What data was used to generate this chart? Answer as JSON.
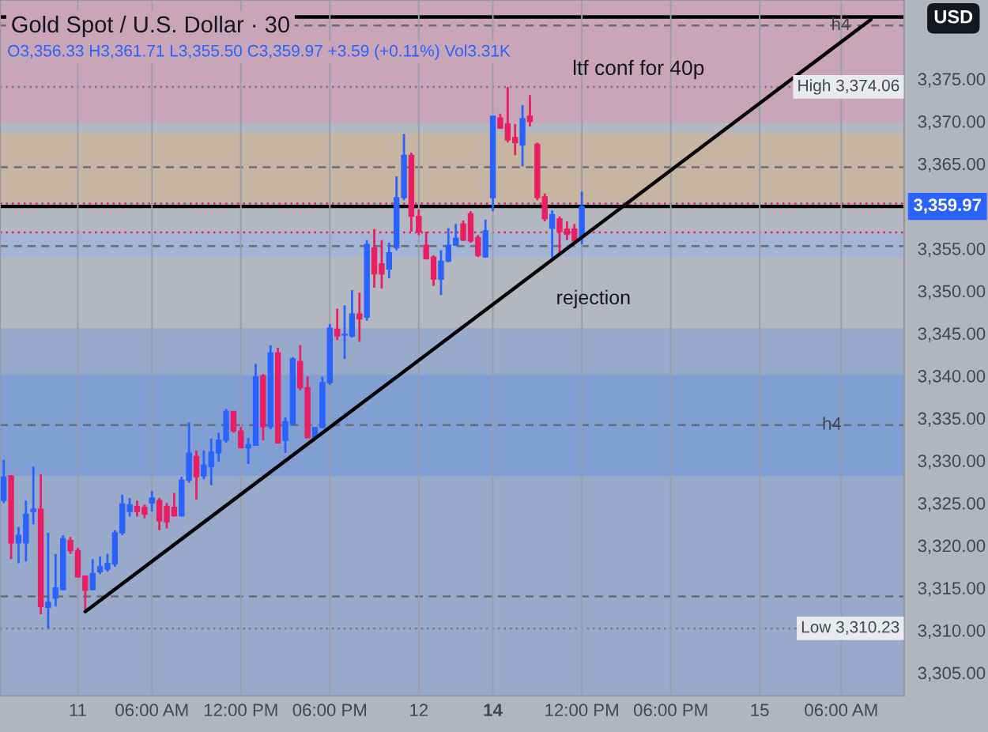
{
  "chart_data": {
    "type": "candlestick",
    "title": "Gold Spot / U.S. Dollar · 30",
    "subtitle": "O3,356.33 H3,361.71 L3,355.50 C3,359.97 +3.59 (+0.11%) Vol3.31K",
    "categories": [
      null,
      null,
      null,
      null,
      null,
      null,
      null,
      null,
      null,
      null,
      "11",
      null,
      null,
      null,
      null,
      null,
      null,
      null,
      null,
      null,
      "06:00 AM",
      null,
      null,
      null,
      null,
      null,
      null,
      null,
      null,
      null,
      null,
      null,
      "12:00 PM",
      null,
      null,
      null,
      null,
      null,
      null,
      null,
      null,
      null,
      null,
      null,
      "06:00 PM",
      null,
      null,
      null,
      null,
      null,
      null,
      null,
      null,
      null,
      null,
      null,
      "12",
      null,
      null,
      null,
      null,
      null,
      null,
      null,
      null,
      null,
      "14",
      null,
      null,
      null,
      null,
      null,
      null,
      null,
      null,
      null,
      null,
      null,
      "12:00 PM",
      null,
      null,
      null,
      null,
      null,
      null,
      null,
      null,
      null,
      null,
      null,
      "06:00 PM",
      null,
      null,
      null,
      null,
      null,
      null,
      null,
      null,
      null,
      null,
      null,
      "15",
      null,
      null,
      null,
      null,
      null,
      null,
      null,
      null,
      null,
      null,
      "06:00 AM",
      null,
      null,
      null,
      null,
      null,
      null,
      null,
      null
    ],
    "ohlc": [
      [
        3325.3,
        3330.1,
        3325.0,
        3328.1
      ],
      [
        3328.2,
        3328.3,
        3318.4,
        3320.3
      ],
      [
        3320.3,
        3322.2,
        3317.9,
        3321.2
      ],
      [
        3320.3,
        3325.3,
        3318.1,
        3323.7
      ],
      [
        3324.0,
        3329.3,
        3322.5,
        3324.3
      ],
      [
        3324.3,
        3328.4,
        3311.9,
        3312.8
      ],
      [
        3312.7,
        3321.5,
        3310.23,
        3313.3
      ],
      [
        3313.8,
        3319.0,
        3312.8,
        3315.0
      ],
      [
        3314.8,
        3321.2,
        3314.7,
        3320.8
      ],
      [
        3320.6,
        3321.0,
        3319.0,
        3319.4
      ],
      [
        3319.4,
        3319.7,
        3316.2,
        3316.3
      ],
      [
        3316.4,
        3316.4,
        3312.2,
        3314.7
      ],
      [
        3314.8,
        3318.4,
        3314.7,
        3316.7
      ],
      [
        3316.9,
        3318.7,
        3316.6,
        3317.5
      ],
      [
        3317.2,
        3319.0,
        3316.9,
        3317.9
      ],
      [
        3317.8,
        3321.8,
        3317.5,
        3321.5
      ],
      [
        3321.5,
        3326.0,
        3321.2,
        3324.9
      ],
      [
        3324.0,
        3325.6,
        3323.4,
        3324.8
      ],
      [
        3324.6,
        3325.3,
        3323.4,
        3324.0
      ],
      [
        3324.5,
        3324.8,
        3323.2,
        3323.7
      ],
      [
        3325.0,
        3326.4,
        3324.0,
        3325.6
      ],
      [
        3325.3,
        3325.6,
        3321.8,
        3322.9
      ],
      [
        3324.6,
        3325.0,
        3322.0,
        3322.8
      ],
      [
        3324.5,
        3326.2,
        3323.4,
        3323.5
      ],
      [
        3323.5,
        3328.1,
        3323.4,
        3327.7
      ],
      [
        3327.7,
        3334.5,
        3327.4,
        3330.9
      ],
      [
        3330.5,
        3331.2,
        3325.4,
        3328.1
      ],
      [
        3328.2,
        3331.2,
        3327.8,
        3329.5
      ],
      [
        3329.3,
        3332.6,
        3327.1,
        3331.0
      ],
      [
        3330.9,
        3333.3,
        3329.9,
        3332.4
      ],
      [
        3332.4,
        3336.1,
        3332.1,
        3335.8
      ],
      [
        3335.8,
        3335.8,
        3333.3,
        3333.5
      ],
      [
        3333.5,
        3334.0,
        3331.5,
        3331.5
      ],
      [
        3331.5,
        3332.7,
        3329.6,
        3331.9
      ],
      [
        3331.8,
        3341.4,
        3331.8,
        3339.9
      ],
      [
        3340.0,
        3340.2,
        3332.4,
        3334.0
      ],
      [
        3334.0,
        3343.6,
        3333.7,
        3342.7
      ],
      [
        3342.7,
        3343.3,
        3332.1,
        3332.1
      ],
      [
        3332.4,
        3335.1,
        3330.9,
        3334.6
      ],
      [
        3334.3,
        3342.2,
        3334.3,
        3342.0
      ],
      [
        3341.7,
        3343.6,
        3338.3,
        3338.6
      ],
      [
        3338.6,
        3339.9,
        3332.7,
        3332.7
      ],
      [
        3332.8,
        3333.9,
        3332.7,
        3333.9
      ],
      [
        3333.9,
        3339.9,
        3333.8,
        3339.2
      ],
      [
        3339.2,
        3346.1,
        3338.9,
        3345.6
      ],
      [
        3345.5,
        3347.9,
        3344.2,
        3344.7
      ],
      [
        3344.8,
        3348.3,
        3342.0,
        3344.9
      ],
      [
        3344.7,
        3350.1,
        3344.5,
        3347.3
      ],
      [
        3347.3,
        3349.8,
        3344.0,
        3346.7
      ],
      [
        3346.9,
        3356.0,
        3346.5,
        3355.5
      ],
      [
        3355.1,
        3357.3,
        3350.4,
        3352.0
      ],
      [
        3353.2,
        3356.0,
        3350.3,
        3352.0
      ],
      [
        3352.6,
        3355.7,
        3351.5,
        3354.5
      ],
      [
        3355.1,
        3363.5,
        3354.8,
        3361.0
      ],
      [
        3361.0,
        3368.5,
        3360.7,
        3366.0
      ],
      [
        3366.0,
        3366.3,
        3357.0,
        3358.8
      ],
      [
        3358.8,
        3359.6,
        3356.6,
        3357.0
      ],
      [
        3355.4,
        3357.0,
        3353.7,
        3353.8
      ],
      [
        3354.0,
        3354.2,
        3350.6,
        3351.4
      ],
      [
        3351.4,
        3354.8,
        3349.5,
        3353.5
      ],
      [
        3353.5,
        3357.4,
        3353.4,
        3355.4
      ],
      [
        3355.4,
        3357.9,
        3355.3,
        3356.2
      ],
      [
        3357.9,
        3358.3,
        3355.9,
        3356.0
      ],
      [
        3359.1,
        3359.4,
        3355.7,
        3355.9
      ],
      [
        3356.3,
        3356.6,
        3354.0,
        3354.2
      ],
      [
        3354.0,
        3358.4,
        3353.9,
        3357.1
      ],
      [
        3361.0,
        3370.6,
        3359.4,
        3370.6
      ],
      [
        3370.4,
        3370.9,
        3369.1,
        3369.2
      ],
      [
        3369.7,
        3374.06,
        3367.5,
        3367.8
      ],
      [
        3368.1,
        3369.7,
        3366.0,
        3367.5
      ],
      [
        3367.2,
        3371.9,
        3364.7,
        3370.3
      ],
      [
        3370.6,
        3373.1,
        3369.4,
        3370.0
      ],
      [
        3367.3,
        3367.5,
        3360.7,
        3361.0
      ],
      [
        3361.1,
        3361.5,
        3358.2,
        3358.5
      ],
      [
        3357.4,
        3359.5,
        3353.9,
        3359.0
      ],
      [
        3358.5,
        3358.8,
        3354.2,
        3357.0
      ],
      [
        3357.3,
        3358.2,
        3356.0,
        3356.7
      ],
      [
        3357.3,
        3357.9,
        3355.7,
        3355.9
      ],
      [
        3356.33,
        3361.71,
        3355.5,
        3359.97
      ],
      null,
      null,
      null,
      null,
      null,
      null,
      null,
      null,
      null,
      null,
      null,
      null,
      null,
      null,
      null,
      null,
      null,
      null,
      null,
      null,
      null,
      null,
      null,
      null,
      null,
      null,
      null,
      null,
      null,
      null,
      null,
      null,
      null,
      null,
      null,
      null,
      null,
      null,
      null,
      null,
      null,
      null,
      null
    ],
    "colors": [
      "#2962ff",
      "#e91e63",
      "#2962ff",
      "#2962ff",
      "#2962ff",
      "#e91e63",
      "#2962ff",
      "#2962ff",
      "#2962ff",
      "#e91e63",
      "#e91e63",
      "#e91e63",
      "#2962ff",
      "#2962ff",
      "#2962ff",
      "#2962ff",
      "#2962ff",
      "#2962ff",
      "#e91e63",
      "#e91e63",
      "#2962ff",
      "#e91e63",
      "#e91e63",
      "#e91e63",
      "#2962ff",
      "#2962ff",
      "#e91e63",
      "#2962ff",
      "#2962ff",
      "#2962ff",
      "#2962ff",
      "#e91e63",
      "#e91e63",
      "#2962ff",
      "#2962ff",
      "#e91e63",
      "#2962ff",
      "#e91e63",
      "#2962ff",
      "#2962ff",
      "#e91e63",
      "#e91e63",
      "#2962ff",
      "#2962ff",
      "#2962ff",
      "#e91e63",
      "#2962ff",
      "#2962ff",
      "#e91e63",
      "#2962ff",
      "#e91e63",
      "#e91e63",
      "#2962ff",
      "#2962ff",
      "#2962ff",
      "#e91e63",
      "#e91e63",
      "#e91e63",
      "#e91e63",
      "#2962ff",
      "#2962ff",
      "#2962ff",
      "#e91e63",
      "#e91e63",
      "#e91e63",
      "#2962ff",
      "#2962ff",
      "#e91e63",
      "#e91e63",
      "#e91e63",
      "#2962ff",
      "#e91e63",
      "#e91e63",
      "#e91e63",
      "#2962ff",
      "#e91e63",
      "#e91e63",
      "#e91e63",
      "#2962ff",
      null,
      null,
      null,
      null,
      null,
      null,
      null,
      null,
      null,
      null,
      null,
      null,
      null,
      null,
      null,
      null,
      null,
      null,
      null,
      null,
      null,
      null,
      null,
      null,
      null,
      null,
      null,
      null,
      null,
      null,
      null,
      null,
      null,
      null,
      null,
      null,
      null,
      null,
      null,
      null,
      null,
      null,
      null
    ],
    "series": [
      {
        "type": "line",
        "values": [
          null,
          null,
          null,
          null,
          null,
          null,
          null,
          null,
          null,
          null,
          null,
          3312.2,
          null,
          null,
          null,
          null,
          null,
          null,
          null,
          null,
          null,
          null,
          null,
          null,
          null,
          null,
          null,
          null,
          null,
          null,
          null,
          null,
          null,
          null,
          null,
          null,
          null,
          null,
          null,
          null,
          null,
          null,
          null,
          null,
          null,
          null,
          null,
          null,
          null,
          null,
          null,
          null,
          null,
          null,
          null,
          null,
          null,
          null,
          null,
          null,
          null,
          null,
          null,
          null,
          null,
          null,
          null,
          null,
          null,
          null,
          null,
          null,
          null,
          null,
          null,
          null,
          null,
          null,
          null,
          null,
          null,
          null,
          null,
          null,
          null,
          null,
          null,
          null,
          null,
          null,
          null,
          null,
          null,
          null,
          null,
          null,
          null,
          null,
          null,
          null,
          null,
          null,
          null,
          null,
          null,
          null,
          null,
          null,
          null,
          null,
          null,
          null,
          null,
          null,
          null,
          null,
          null,
          3382.0,
          null,
          null,
          null,
          null
        ],
        "color": "#000000"
      }
    ],
    "ylim": [
      3302.3,
      3384.3
    ],
    "yticks": [
      {
        "value": 3305,
        "label": "3,305.00"
      },
      {
        "value": 3310,
        "label": "3,310.00"
      },
      {
        "value": 3315,
        "label": "3,315.00"
      },
      {
        "value": 3320,
        "label": "3,320.00"
      },
      {
        "value": 3325,
        "label": "3,325.00"
      },
      {
        "value": 3330,
        "label": "3,330.00"
      },
      {
        "value": 3335,
        "label": "3,335.00"
      },
      {
        "value": 3340,
        "label": "3,340.00"
      },
      {
        "value": 3345,
        "label": "3,345.00"
      },
      {
        "value": 3350,
        "label": "3,350.00"
      },
      {
        "value": 3355,
        "label": "3,355.00"
      },
      {
        "value": 3365,
        "label": "3,365.00"
      },
      {
        "value": 3370,
        "label": "3,370.00"
      },
      {
        "value": 3375,
        "label": "3,375.00"
      }
    ],
    "bands": [
      {
        "axis": "y",
        "from": 3302.3,
        "to": 3345.6,
        "color": "#98a9c9"
      },
      {
        "axis": "y",
        "from": 3328.2,
        "to": 3340.1,
        "color": "#819fd2"
      },
      {
        "axis": "y",
        "from": 3369.8,
        "to": 3384.3,
        "color": "#c9a5b8"
      },
      {
        "axis": "y",
        "from": 3360.4,
        "to": 3368.6,
        "color": "#c6b5a2"
      },
      {
        "axis": "y",
        "from": 3354.0,
        "to": 3356.8,
        "color": "#a4b5d4"
      }
    ],
    "ref_lines": [
      {
        "axis": "y",
        "value": 3359.97,
        "label": "3,359.97",
        "color": "#000000",
        "line_style": "solid"
      },
      {
        "axis": "y",
        "value": 3382.3,
        "color": "#000000",
        "line_style": "solid"
      },
      {
        "axis": "y",
        "value": 3381.3,
        "label": "h4",
        "color": "#6a6d78",
        "line_style": "dashed"
      },
      {
        "axis": "y",
        "value": 3334.2,
        "label": "h4",
        "color": "#6a6d78",
        "line_style": "dashed"
      },
      {
        "axis": "y",
        "value": 3364.6,
        "color": "#6a6d78",
        "line_style": "dashed"
      },
      {
        "axis": "y",
        "value": 3355.3,
        "color": "#6a6d78",
        "line_style": "dashed"
      },
      {
        "axis": "y",
        "value": 3314.0,
        "color": "#6a6d78",
        "line_style": "dashed"
      },
      {
        "axis": "y",
        "value": 3374.06,
        "label": "High 3,374.06",
        "color": "#787b86",
        "line_style": "dotted"
      },
      {
        "axis": "y",
        "value": 3310.23,
        "label": "Low 3,310.23",
        "color": "#787b86",
        "line_style": "dotted"
      },
      {
        "axis": "y",
        "value": 3360.3,
        "color": "#e91e63",
        "line_style": "dotted"
      },
      {
        "axis": "y",
        "value": 3356.9,
        "color": "#e91e63",
        "line_style": "dotted"
      }
    ],
    "annotations": [
      "ltf conf for 40p",
      "rejection",
      "USD"
    ],
    "grid": "x",
    "legend": false
  }
}
